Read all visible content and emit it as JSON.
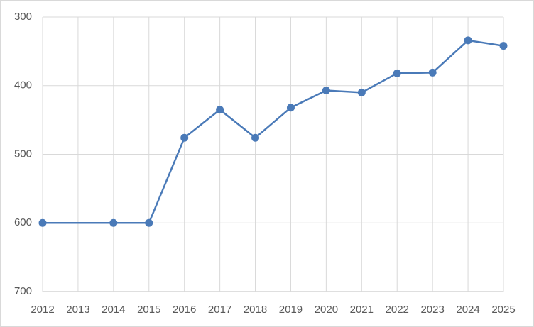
{
  "chart_data": {
    "type": "line",
    "x": [
      2012,
      2014,
      2015,
      2016,
      2017,
      2018,
      2019,
      2020,
      2021,
      2022,
      2023,
      2024,
      2025
    ],
    "series": [
      {
        "color": "#4a7ab8",
        "values": [
          600,
          600,
          600,
          476,
          435,
          476,
          432,
          407,
          410,
          382,
          381,
          334,
          342
        ]
      }
    ],
    "xlim": [
      2012,
      2025
    ],
    "xticks": [
      2012,
      2013,
      2014,
      2015,
      2016,
      2017,
      2018,
      2019,
      2020,
      2021,
      2022,
      2023,
      2024,
      2025
    ],
    "ylim": [
      300,
      700
    ],
    "yticks": [
      300,
      400,
      500,
      600,
      700
    ],
    "y_inverted": true,
    "grid": true
  }
}
